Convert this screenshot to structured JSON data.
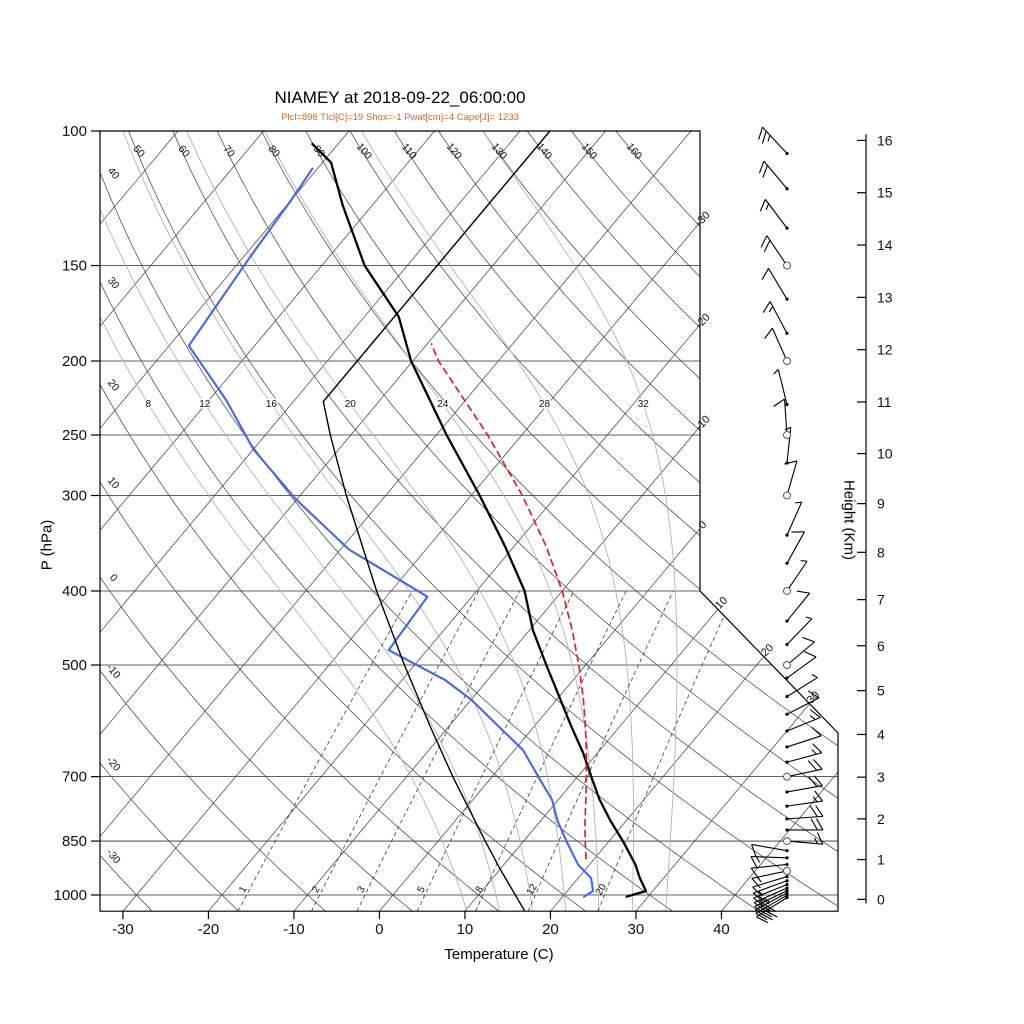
{
  "title": "NIAMEY at 2018-09-22_06:00:00",
  "subtitle": "Plcl=896 Tlcl[C]=19 Shox=-1 Pwat[cm]=4 Cape[J]= 1233",
  "axes": {
    "pressure_label": "P (hPa)",
    "pressure_ticks": [
      100,
      150,
      200,
      250,
      300,
      400,
      500,
      700,
      850,
      1000
    ],
    "temperature_label": "Temperature (C)",
    "temperature_ticks": [
      -30,
      -20,
      -10,
      0,
      10,
      20,
      30,
      40
    ],
    "height_label": "Height (Km)",
    "height_ticks": [
      0,
      1,
      2,
      3,
      4,
      5,
      6,
      7,
      8,
      9,
      10,
      11,
      12,
      13,
      14,
      15,
      16
    ]
  },
  "background": {
    "isotherms_c": {
      "min": -120,
      "max": 40,
      "step": 10
    },
    "isotherm_edge_labels": [
      -30,
      -20,
      -10,
      0,
      10,
      20,
      30
    ],
    "dry_adiabat_top_labels": [
      50,
      60,
      70,
      80,
      90,
      100,
      110,
      120,
      130,
      140,
      150,
      160
    ],
    "dry_adiabat_left_labels": [
      40,
      30,
      20,
      10,
      0,
      -10,
      -20,
      -30
    ],
    "moist_adiabat_labels": [
      8,
      12,
      16,
      20,
      24,
      28,
      32
    ],
    "mixing_ratio_labels": [
      1,
      2,
      3,
      5,
      8,
      12,
      20
    ]
  },
  "chart_data": {
    "type": "line",
    "subtype": "skewT-logP-sounding",
    "station": "NIAMEY",
    "time": "2018-09-22_06:00:00",
    "indices": {
      "Plcl": 896,
      "Tlcl_C": 19,
      "Shox": -1,
      "Pwat_cm": 4,
      "Cape_J": 1233
    },
    "pressure_range_hPa": [
      100,
      1050
    ],
    "temperature_range_C": [
      -35,
      40
    ],
    "series": [
      {
        "name": "temperature",
        "color": "#000000",
        "style": "solid",
        "width": 2.3,
        "points": [
          [
            1005,
            27.5
          ],
          [
            988,
            29.2
          ],
          [
            950,
            27.2
          ],
          [
            913,
            25.4
          ],
          [
            850,
            21.6
          ],
          [
            800,
            18.2
          ],
          [
            750,
            14.8
          ],
          [
            700,
            11.6
          ],
          [
            650,
            8.2
          ],
          [
            600,
            4.2
          ],
          [
            550,
            0.0
          ],
          [
            500,
            -4.6
          ],
          [
            450,
            -9.6
          ],
          [
            400,
            -14.4
          ],
          [
            350,
            -21.0
          ],
          [
            300,
            -29.0
          ],
          [
            250,
            -38.8
          ],
          [
            200,
            -50.2
          ],
          [
            175,
            -56.0
          ],
          [
            150,
            -65.0
          ],
          [
            125,
            -73.5
          ],
          [
            110,
            -79.0
          ],
          [
            104,
            -83.0
          ]
        ]
      },
      {
        "name": "dewpoint",
        "color": "#4169e1",
        "style": "solid",
        "width": 2.1,
        "points": [
          [
            1005,
            22.5
          ],
          [
            988,
            23.0
          ],
          [
            950,
            21.5
          ],
          [
            913,
            18.7
          ],
          [
            850,
            15.0
          ],
          [
            800,
            12.0
          ],
          [
            751,
            9.3
          ],
          [
            700,
            5.4
          ],
          [
            646,
            1.0
          ],
          [
            608,
            -3.4
          ],
          [
            555,
            -10.0
          ],
          [
            523,
            -15.0
          ],
          [
            478,
            -24.5
          ],
          [
            407,
            -25.2
          ],
          [
            353,
            -39.0
          ],
          [
            304,
            -50.0
          ],
          [
            261,
            -60.0
          ],
          [
            225,
            -68.0
          ],
          [
            191,
            -77.7
          ],
          [
            147,
            -79.2
          ],
          [
            123,
            -80.0
          ],
          [
            112,
            -80.6
          ]
        ]
      },
      {
        "name": "parcel",
        "color": "#dd2222",
        "style": "dashed",
        "width": 1.7,
        "points": [
          [
            896,
            19.0
          ],
          [
            850,
            17.2
          ],
          [
            800,
            15.2
          ],
          [
            750,
            13.2
          ],
          [
            700,
            11.0
          ],
          [
            650,
            8.6
          ],
          [
            600,
            5.9
          ],
          [
            550,
            2.8
          ],
          [
            500,
            -0.8
          ],
          [
            450,
            -5.0
          ],
          [
            400,
            -10.0
          ],
          [
            350,
            -16.2
          ],
          [
            300,
            -24.0
          ],
          [
            250,
            -34.0
          ],
          [
            200,
            -47.0
          ],
          [
            190,
            -49.5
          ]
        ]
      },
      {
        "name": "standard-atmosphere",
        "color": "#000000",
        "style": "solid",
        "width": 1.4,
        "points": [
          [
            1050,
            17.0
          ],
          [
            1000,
            14.3
          ],
          [
            925,
            10.0
          ],
          [
            850,
            5.5
          ],
          [
            700,
            -4.6
          ],
          [
            600,
            -12.3
          ],
          [
            500,
            -21.2
          ],
          [
            400,
            -31.7
          ],
          [
            300,
            -44.6
          ],
          [
            250,
            -52.4
          ],
          [
            226,
            -56.5
          ],
          [
            200,
            -56.5
          ],
          [
            150,
            -56.5
          ],
          [
            125,
            -56.5
          ],
          [
            100,
            -56.5
          ]
        ]
      }
    ],
    "wind_barbs": [
      [
        1008,
        212,
        3,
        0,
        "d"
      ],
      [
        1001,
        210,
        2,
        1,
        "d"
      ],
      [
        994,
        208,
        3,
        0,
        "d"
      ],
      [
        987,
        206,
        2,
        0,
        "d"
      ],
      [
        979,
        204,
        2,
        1,
        "d"
      ],
      [
        969,
        202,
        2,
        0,
        "d"
      ],
      [
        958,
        200,
        1,
        1,
        "d"
      ],
      [
        946,
        197,
        1,
        0,
        "d"
      ],
      [
        930,
        192,
        1,
        1,
        "c"
      ],
      [
        912,
        186,
        1,
        0,
        "d"
      ],
      [
        894,
        178,
        1,
        1,
        "d"
      ],
      [
        875,
        170,
        1,
        0,
        "d"
      ],
      [
        850,
        -5,
        1,
        1,
        "c"
      ],
      [
        822,
        0,
        2,
        0,
        "d"
      ],
      [
        795,
        4,
        2,
        0,
        "d"
      ],
      [
        765,
        8,
        1,
        1,
        "d"
      ],
      [
        733,
        10,
        2,
        0,
        "d"
      ],
      [
        700,
        12,
        2,
        0,
        "c"
      ],
      [
        670,
        15,
        1,
        1,
        "d"
      ],
      [
        640,
        18,
        1,
        0,
        "d"
      ],
      [
        610,
        22,
        1,
        1,
        "d"
      ],
      [
        580,
        27,
        1,
        0,
        "d"
      ],
      [
        550,
        32,
        0,
        1,
        "d"
      ],
      [
        520,
        36,
        1,
        0,
        "d"
      ],
      [
        500,
        40,
        1,
        0,
        "c"
      ],
      [
        470,
        46,
        0,
        1,
        "d"
      ],
      [
        438,
        51,
        1,
        0,
        "d"
      ],
      [
        400,
        56,
        0,
        1,
        "c"
      ],
      [
        368,
        61,
        1,
        0,
        "d"
      ],
      [
        338,
        66,
        0,
        1,
        "d"
      ],
      [
        300,
        74,
        1,
        0,
        "c"
      ],
      [
        272,
        84,
        0,
        1,
        "d"
      ],
      [
        250,
        94,
        1,
        0,
        "c"
      ],
      [
        228,
        104,
        0,
        1,
        "d"
      ],
      [
        200,
        114,
        1,
        0,
        "c"
      ],
      [
        184,
        118,
        1,
        1,
        "d"
      ],
      [
        166,
        121,
        1,
        0,
        "d"
      ],
      [
        150,
        124,
        2,
        0,
        "c"
      ],
      [
        134,
        127,
        1,
        1,
        "d"
      ],
      [
        119,
        130,
        2,
        0,
        "d"
      ],
      [
        107,
        133,
        2,
        1,
        "d"
      ]
    ]
  },
  "colors": {
    "subtitle": "#d2691e",
    "dewpoint": "#4169e1",
    "parcel": "#dd2222",
    "background_line": "#3c3c3c",
    "moist_adiabat": "#b3b3b3",
    "mixing_line": "#3a3a3a",
    "axis": "#000000"
  }
}
